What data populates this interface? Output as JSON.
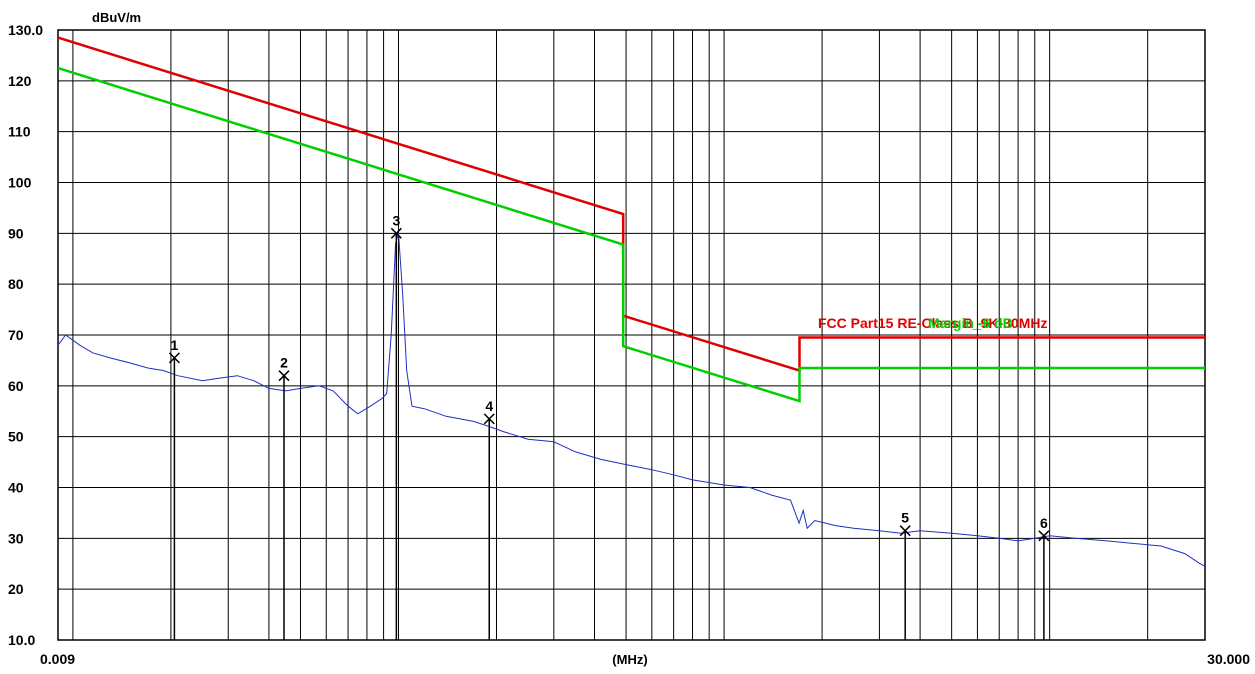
{
  "colors": {
    "background": "#ffffff",
    "grid": "#000000",
    "limit": "#e00000",
    "margin": "#00d000",
    "trace": "#2030c0",
    "marker": "#000000"
  },
  "chart_data": {
    "type": "line",
    "x_scale": "log",
    "xlim": [
      0.009,
      30.0
    ],
    "ylim": [
      10.0,
      130.0
    ],
    "ylabel": "dBuV/m",
    "xlabel": "(MHz)",
    "x_tick_labels": [
      "0.009",
      "30.000"
    ],
    "y_tick_labels": [
      "130.0",
      "120",
      "110",
      "100",
      "90",
      "80",
      "70",
      "60",
      "50",
      "40",
      "30",
      "20",
      "10.0"
    ],
    "grid": true,
    "legend": [
      {
        "name": "FCC Part15 RE-Class B_9K-30MHz",
        "color": "#e00000"
      },
      {
        "name": "Margin -6 dB",
        "color": "#00d000"
      }
    ],
    "series": [
      {
        "name": "FCC Part15 RE-Class B_9K-30MHz",
        "x": [
          0.009,
          0.49,
          0.49,
          1.705,
          1.705,
          30.0
        ],
        "y": [
          128.5,
          93.8,
          73.8,
          63.0,
          69.5,
          69.5
        ]
      },
      {
        "name": "Margin -6 dB",
        "x": [
          0.009,
          0.49,
          0.49,
          1.705,
          1.705,
          30.0
        ],
        "y": [
          122.5,
          87.8,
          67.8,
          57.0,
          63.5,
          63.5
        ]
      },
      {
        "name": "",
        "x": [
          0.009,
          0.0095,
          0.0105,
          0.0115,
          0.013,
          0.015,
          0.017,
          0.019,
          0.021,
          0.025,
          0.028,
          0.032,
          0.036,
          0.04,
          0.045,
          0.05,
          0.057,
          0.063,
          0.07,
          0.075,
          0.082,
          0.089,
          0.092,
          0.095,
          0.098,
          0.1,
          0.103,
          0.106,
          0.11,
          0.12,
          0.14,
          0.17,
          0.19,
          0.21,
          0.25,
          0.3,
          0.35,
          0.42,
          0.5,
          0.6,
          0.7,
          0.8,
          1.0,
          1.2,
          1.4,
          1.6,
          1.7,
          1.75,
          1.8,
          1.9,
          2.2,
          2.5,
          3.0,
          3.5,
          4.0,
          5.0,
          6.0,
          7.0,
          8.0,
          9.0,
          10.0,
          12.0,
          15.0,
          18.0,
          22.0,
          26.0,
          29.0,
          30.0
        ],
        "y": [
          68.0,
          70.0,
          68.0,
          66.5,
          65.5,
          64.5,
          63.5,
          63.0,
          62.0,
          61.0,
          61.5,
          62.0,
          61.0,
          59.5,
          59.0,
          59.5,
          60.0,
          59.0,
          56.0,
          54.5,
          56.0,
          57.5,
          58.5,
          70.0,
          88.0,
          90.0,
          78.0,
          63.0,
          56.0,
          55.5,
          54.0,
          53.0,
          52.0,
          51.0,
          49.5,
          49.0,
          47.0,
          45.5,
          44.5,
          43.5,
          42.5,
          41.5,
          40.5,
          40.0,
          38.5,
          37.5,
          33.0,
          35.5,
          32.0,
          33.5,
          32.5,
          32.0,
          31.5,
          31.0,
          31.5,
          31.0,
          30.5,
          30.0,
          29.5,
          30.0,
          30.5,
          30.0,
          29.5,
          29.0,
          28.5,
          27.0,
          25.0,
          24.5
        ]
      }
    ],
    "markers": [
      {
        "label": "1",
        "x": 0.0205,
        "y": 65.5
      },
      {
        "label": "2",
        "x": 0.0445,
        "y": 62.0
      },
      {
        "label": "3",
        "x": 0.0985,
        "y": 90.0
      },
      {
        "label": "4",
        "x": 0.19,
        "y": 53.5
      },
      {
        "label": "5",
        "x": 3.6,
        "y": 31.5
      },
      {
        "label": "6",
        "x": 9.6,
        "y": 30.5
      }
    ],
    "annotations": [
      {
        "text": "FCC Part15 RE-Class B_9K-30MHz",
        "color": "#e00000"
      },
      {
        "text": "Margin -6 dB",
        "color": "#00d000"
      }
    ]
  }
}
